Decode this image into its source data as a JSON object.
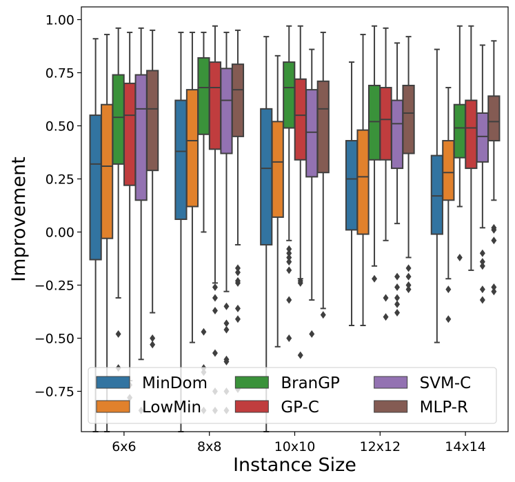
{
  "chart_data": {
    "type": "box",
    "title": "",
    "xlabel": "Instance Size",
    "ylabel": "Improvement",
    "ylim": [
      -0.94,
      1.06
    ],
    "yticks": [
      1.0,
      0.75,
      0.5,
      0.25,
      0.0,
      -0.25,
      -0.5,
      -0.75
    ],
    "ytick_labels": [
      "1.00",
      "0.75",
      "0.50",
      "0.25",
      "0.00",
      "−0.25",
      "−0.50",
      "−0.75"
    ],
    "categories": [
      "6x6",
      "8x8",
      "10x10",
      "12x12",
      "14x14"
    ],
    "legend_position": "lower-center",
    "series": [
      {
        "name": "MinDom",
        "color": "#3274a1",
        "boxes": [
          {
            "q1": -0.13,
            "median": 0.32,
            "q3": 0.55,
            "whisker_low": -0.94,
            "whisker_high": 0.91,
            "outliers": []
          },
          {
            "q1": 0.06,
            "median": 0.38,
            "q3": 0.62,
            "whisker_low": -0.94,
            "whisker_high": 0.94,
            "outliers": []
          },
          {
            "q1": -0.06,
            "median": 0.3,
            "q3": 0.58,
            "whisker_low": -0.94,
            "whisker_high": 0.92,
            "outliers": []
          },
          {
            "q1": 0.01,
            "median": 0.25,
            "q3": 0.43,
            "whisker_low": -0.44,
            "whisker_high": 0.8,
            "outliers": []
          },
          {
            "q1": -0.01,
            "median": 0.17,
            "q3": 0.36,
            "whisker_low": -0.52,
            "whisker_high": 0.86,
            "outliers": []
          }
        ]
      },
      {
        "name": "LowMin",
        "color": "#e1812c",
        "boxes": [
          {
            "q1": -0.03,
            "median": 0.31,
            "q3": 0.6,
            "whisker_low": -0.94,
            "whisker_high": 0.93,
            "outliers": []
          },
          {
            "q1": 0.12,
            "median": 0.43,
            "q3": 0.67,
            "whisker_low": -0.52,
            "whisker_high": 0.94,
            "outliers": []
          },
          {
            "q1": 0.07,
            "median": 0.33,
            "q3": 0.52,
            "whisker_low": -0.54,
            "whisker_high": 0.83,
            "outliers": []
          },
          {
            "q1": -0.01,
            "median": 0.26,
            "q3": 0.48,
            "whisker_low": -0.44,
            "whisker_high": 0.93,
            "outliers": []
          },
          {
            "q1": 0.15,
            "median": 0.28,
            "q3": 0.43,
            "whisker_low": -0.22,
            "whisker_high": 0.68,
            "outliers": [
              -0.27,
              -0.41
            ]
          }
        ]
      },
      {
        "name": "BranGP",
        "color": "#3a923a",
        "boxes": [
          {
            "q1": 0.32,
            "median": 0.54,
            "q3": 0.74,
            "whisker_low": -0.31,
            "whisker_high": 0.96,
            "outliers": [
              -0.48,
              -0.64,
              -0.72
            ]
          },
          {
            "q1": 0.46,
            "median": 0.68,
            "q3": 0.82,
            "whisker_low": 0.0,
            "whisker_high": 0.94,
            "outliers": [
              -0.47,
              -0.64,
              -0.66,
              -0.84
            ]
          },
          {
            "q1": 0.49,
            "median": 0.68,
            "q3": 0.8,
            "whisker_low": -0.04,
            "whisker_high": 0.97,
            "outliers": [
              -0.08,
              -0.1,
              -0.12,
              -0.14,
              -0.18,
              -0.32,
              -0.5,
              -0.7
            ]
          },
          {
            "q1": 0.34,
            "median": 0.52,
            "q3": 0.69,
            "whisker_low": -0.16,
            "whisker_high": 0.97,
            "outliers": [
              -0.22
            ]
          },
          {
            "q1": 0.35,
            "median": 0.49,
            "q3": 0.6,
            "whisker_low": 0.12,
            "whisker_high": 0.97,
            "outliers": [
              -0.12
            ]
          }
        ]
      },
      {
        "name": "GP-C",
        "color": "#c03d3e",
        "boxes": [
          {
            "q1": 0.22,
            "median": 0.55,
            "q3": 0.7,
            "whisker_low": -0.7,
            "whisker_high": 0.94,
            "outliers": [
              -0.72,
              -0.78
            ]
          },
          {
            "q1": 0.39,
            "median": 0.68,
            "q3": 0.8,
            "whisker_low": -0.24,
            "whisker_high": 0.97,
            "outliers": [
              -0.26,
              -0.31,
              -0.37,
              -0.57,
              -0.75,
              -0.84
            ]
          },
          {
            "q1": 0.34,
            "median": 0.55,
            "q3": 0.72,
            "whisker_low": -0.22,
            "whisker_high": 0.97,
            "outliers": [
              -0.23,
              -0.24,
              -0.58
            ]
          },
          {
            "q1": 0.34,
            "median": 0.53,
            "q3": 0.68,
            "whisker_low": -0.04,
            "whisker_high": 0.96,
            "outliers": [
              -0.31,
              -0.4
            ]
          },
          {
            "q1": 0.3,
            "median": 0.49,
            "q3": 0.62,
            "whisker_low": -0.18,
            "whisker_high": 0.97,
            "outliers": []
          }
        ]
      },
      {
        "name": "SVM-C",
        "color": "#9372b2",
        "boxes": [
          {
            "q1": 0.15,
            "median": 0.58,
            "q3": 0.74,
            "whisker_low": -0.6,
            "whisker_high": 0.96,
            "outliers": [
              -0.84
            ]
          },
          {
            "q1": 0.37,
            "median": 0.62,
            "q3": 0.77,
            "whisker_low": -0.28,
            "whisker_high": 0.94,
            "outliers": [
              -0.35,
              -0.43,
              -0.46,
              -0.6,
              -0.61,
              -0.75,
              -0.84
            ]
          },
          {
            "q1": 0.26,
            "median": 0.47,
            "q3": 0.67,
            "whisker_low": -0.32,
            "whisker_high": 0.86,
            "outliers": [
              -0.48
            ]
          },
          {
            "q1": 0.3,
            "median": 0.51,
            "q3": 0.62,
            "whisker_low": 0.04,
            "whisker_high": 0.89,
            "outliers": [
              -0.21,
              -0.26,
              -0.31,
              -0.34,
              -0.38
            ]
          },
          {
            "q1": 0.33,
            "median": 0.45,
            "q3": 0.56,
            "whisker_low": 0.02,
            "whisker_high": 0.88,
            "outliers": [
              -0.1,
              -0.14,
              -0.16,
              -0.27,
              -0.32
            ]
          }
        ]
      },
      {
        "name": "MLP-R",
        "color": "#845b53",
        "boxes": [
          {
            "q1": 0.29,
            "median": 0.58,
            "q3": 0.76,
            "whisker_low": -0.38,
            "whisker_high": 0.95,
            "outliers": [
              -0.5,
              -0.53
            ]
          },
          {
            "q1": 0.45,
            "median": 0.67,
            "q3": 0.79,
            "whisker_low": -0.06,
            "whisker_high": 0.95,
            "outliers": [
              -0.17,
              -0.19,
              -0.23,
              -0.24,
              -0.36,
              -0.41,
              -0.72,
              -0.74
            ]
          },
          {
            "q1": 0.28,
            "median": 0.58,
            "q3": 0.71,
            "whisker_low": -0.36,
            "whisker_high": 0.94,
            "outliers": [
              -0.39
            ]
          },
          {
            "q1": 0.37,
            "median": 0.56,
            "q3": 0.69,
            "whisker_low": -0.12,
            "whisker_high": 0.92,
            "outliers": [
              -0.17,
              -0.21,
              -0.25,
              -0.27
            ]
          },
          {
            "q1": 0.43,
            "median": 0.52,
            "q3": 0.64,
            "whisker_low": 0.15,
            "whisker_high": 0.9,
            "outliers": [
              0.01,
              0.02,
              -0.04,
              -0.26,
              -0.28
            ]
          }
        ]
      }
    ]
  }
}
